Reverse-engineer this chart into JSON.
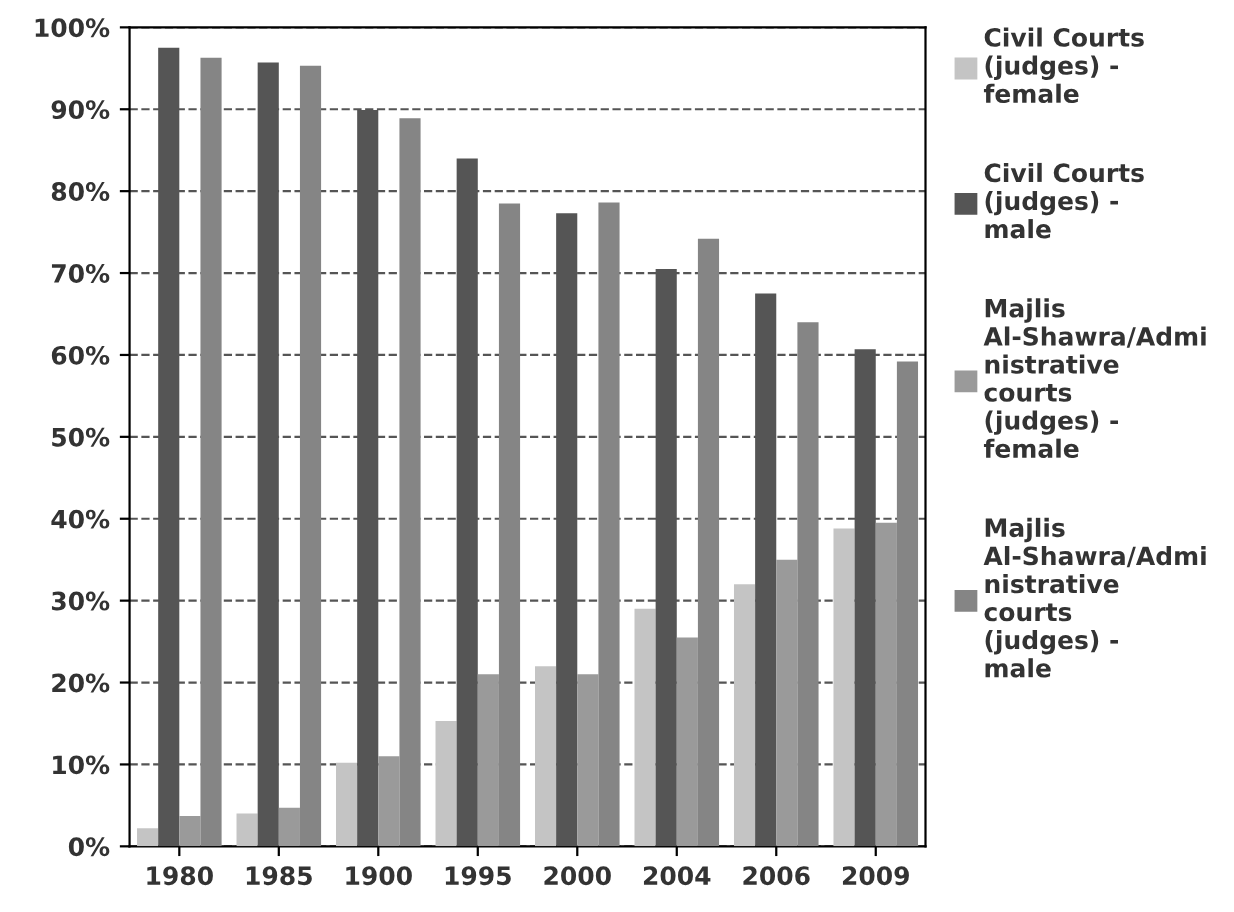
{
  "chart_data": {
    "type": "bar",
    "categories": [
      "1980",
      "1985",
      "1900",
      "1995",
      "2000",
      "2004",
      "2006",
      "2009"
    ],
    "series": [
      {
        "name": "Civil Courts (judges) - female",
        "color": "#c4c4c4",
        "values": [
          2.2,
          4,
          10.2,
          15.3,
          22,
          29,
          32,
          38.8
        ]
      },
      {
        "name": "Civil Courts (judges) - male",
        "color": "#555555",
        "values": [
          97.5,
          95.7,
          89.9,
          84,
          77.3,
          70.5,
          67.5,
          60.7
        ]
      },
      {
        "name": "Majlis Al-Shawra/Administrative courts (judges) - female",
        "color": "#9a9a9a",
        "values": [
          3.7,
          4.7,
          11,
          21,
          21,
          25.5,
          35,
          39.5
        ]
      },
      {
        "name": "Majlis Al-Shawra/Administrative courts (judges) - male",
        "color": "#858585",
        "values": [
          96.3,
          95.3,
          88.9,
          78.5,
          78.6,
          74.2,
          64,
          59.2
        ]
      }
    ],
    "ylim": [
      0,
      100
    ],
    "yticks": [
      {
        "value": 0,
        "label": "0%"
      },
      {
        "value": 10,
        "label": "10%"
      },
      {
        "value": 20,
        "label": "20%"
      },
      {
        "value": 30,
        "label": "30%"
      },
      {
        "value": 40,
        "label": "40%"
      },
      {
        "value": 50,
        "label": "50%"
      },
      {
        "value": 60,
        "label": "60%"
      },
      {
        "value": 70,
        "label": "70%"
      },
      {
        "value": 80,
        "label": "80%"
      },
      {
        "value": 90,
        "label": "90%"
      },
      {
        "value": 100,
        "label": "100%"
      }
    ],
    "grid": "y",
    "legend": "right"
  }
}
